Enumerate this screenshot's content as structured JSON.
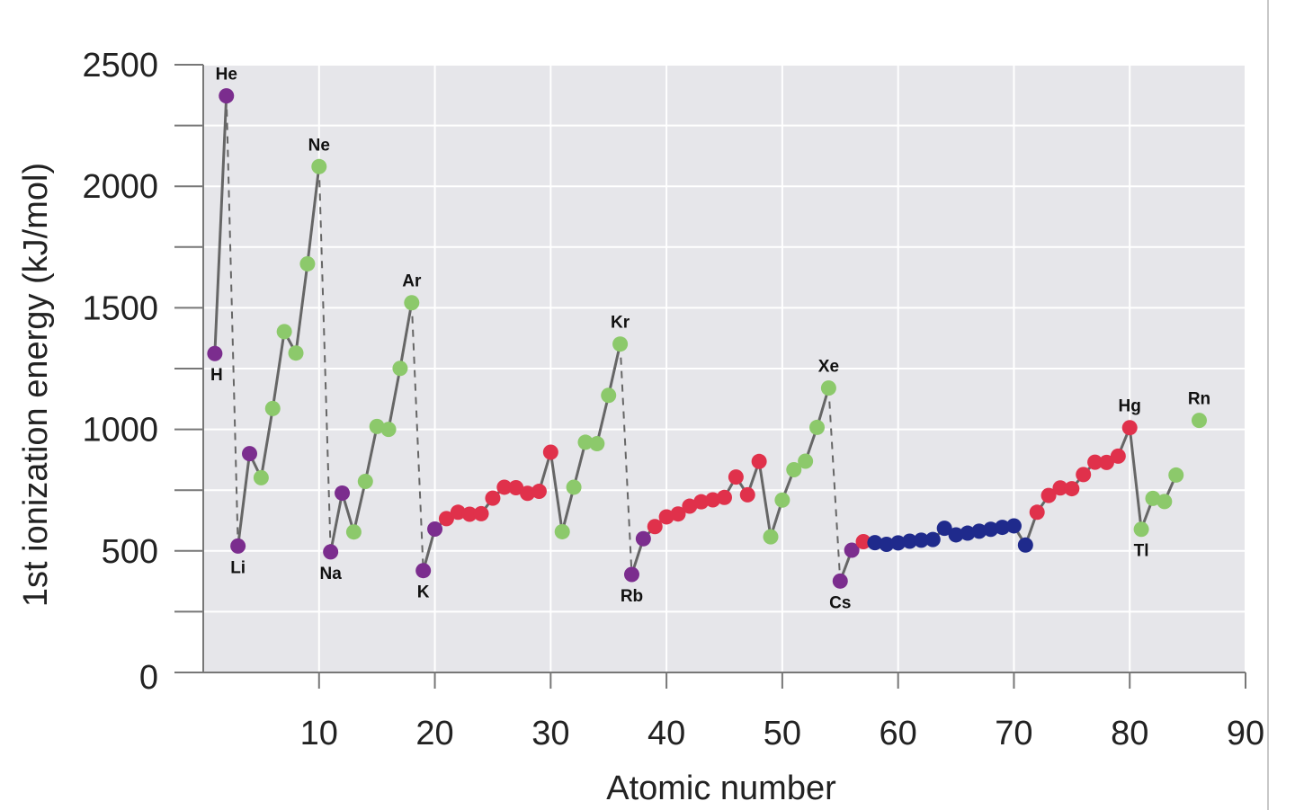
{
  "chart_data": {
    "type": "line",
    "title": "",
    "xlabel": "Atomic number",
    "ylabel": "1st ionization energy (kJ/mol)",
    "xlim": [
      0,
      90
    ],
    "ylim": [
      0,
      2500
    ],
    "x_ticks": [
      10,
      20,
      30,
      40,
      50,
      60,
      70,
      80,
      90
    ],
    "y_ticks": [
      0,
      500,
      1000,
      1500,
      2000,
      2500
    ],
    "grid": true,
    "colors": {
      "s_block": "#7b2d8e",
      "p_block": "#8cc96b",
      "d_block": "#e0314b",
      "f_block": "#1f2a8c",
      "plot_background": "#e6e6ea",
      "line": "#666666"
    },
    "series": [
      {
        "block": "s",
        "points": [
          [
            1,
            1312,
            "H"
          ],
          [
            2,
            2372,
            "He"
          ],
          [
            3,
            520,
            "Li"
          ],
          [
            4,
            900,
            ""
          ],
          [
            11,
            496,
            "Na"
          ],
          [
            12,
            738,
            ""
          ],
          [
            19,
            419,
            "K"
          ],
          [
            20,
            590,
            ""
          ],
          [
            37,
            403,
            "Rb"
          ],
          [
            38,
            550,
            ""
          ],
          [
            55,
            376,
            "Cs"
          ],
          [
            56,
            503,
            ""
          ]
        ]
      },
      {
        "block": "p",
        "points": [
          [
            5,
            801,
            ""
          ],
          [
            6,
            1086,
            ""
          ],
          [
            7,
            1402,
            ""
          ],
          [
            8,
            1314,
            ""
          ],
          [
            9,
            1681,
            ""
          ],
          [
            10,
            2081,
            "Ne"
          ],
          [
            13,
            578,
            ""
          ],
          [
            14,
            786,
            ""
          ],
          [
            15,
            1012,
            ""
          ],
          [
            16,
            1000,
            ""
          ],
          [
            17,
            1251,
            ""
          ],
          [
            18,
            1521,
            "Ar"
          ],
          [
            31,
            579,
            ""
          ],
          [
            32,
            762,
            ""
          ],
          [
            33,
            947,
            ""
          ],
          [
            34,
            941,
            ""
          ],
          [
            35,
            1140,
            ""
          ],
          [
            36,
            1351,
            "Kr"
          ],
          [
            49,
            558,
            ""
          ],
          [
            50,
            709,
            ""
          ],
          [
            51,
            834,
            ""
          ],
          [
            52,
            869,
            ""
          ],
          [
            53,
            1008,
            ""
          ],
          [
            54,
            1170,
            "Xe"
          ],
          [
            81,
            589,
            "Tl"
          ],
          [
            82,
            716,
            ""
          ],
          [
            83,
            703,
            ""
          ],
          [
            84,
            812,
            ""
          ],
          [
            86,
            1037,
            "Rn"
          ]
        ]
      },
      {
        "block": "d",
        "points": [
          [
            21,
            633,
            ""
          ],
          [
            22,
            659,
            ""
          ],
          [
            23,
            651,
            ""
          ],
          [
            24,
            653,
            ""
          ],
          [
            25,
            717,
            ""
          ],
          [
            26,
            762,
            ""
          ],
          [
            27,
            760,
            ""
          ],
          [
            28,
            737,
            ""
          ],
          [
            29,
            745,
            ""
          ],
          [
            30,
            906,
            ""
          ],
          [
            39,
            600,
            ""
          ],
          [
            40,
            640,
            ""
          ],
          [
            41,
            652,
            ""
          ],
          [
            42,
            684,
            ""
          ],
          [
            43,
            702,
            ""
          ],
          [
            44,
            710,
            ""
          ],
          [
            45,
            720,
            ""
          ],
          [
            46,
            804,
            ""
          ],
          [
            47,
            731,
            ""
          ],
          [
            48,
            868,
            ""
          ],
          [
            57,
            538,
            ""
          ],
          [
            72,
            659,
            ""
          ],
          [
            73,
            728,
            ""
          ],
          [
            74,
            759,
            ""
          ],
          [
            75,
            756,
            ""
          ],
          [
            76,
            814,
            ""
          ],
          [
            77,
            865,
            ""
          ],
          [
            78,
            864,
            ""
          ],
          [
            79,
            890,
            ""
          ],
          [
            80,
            1007,
            "Hg"
          ]
        ]
      },
      {
        "block": "f",
        "points": [
          [
            58,
            534,
            ""
          ],
          [
            59,
            527,
            ""
          ],
          [
            60,
            533,
            ""
          ],
          [
            61,
            540,
            ""
          ],
          [
            62,
            544,
            ""
          ],
          [
            63,
            547,
            ""
          ],
          [
            64,
            593,
            ""
          ],
          [
            65,
            566,
            ""
          ],
          [
            66,
            573,
            ""
          ],
          [
            67,
            581,
            ""
          ],
          [
            68,
            589,
            ""
          ],
          [
            69,
            597,
            ""
          ],
          [
            70,
            603,
            ""
          ],
          [
            71,
            524,
            ""
          ]
        ]
      }
    ],
    "dashed_drops": [
      [
        2,
        3
      ],
      [
        10,
        11
      ],
      [
        18,
        19
      ],
      [
        36,
        37
      ],
      [
        54,
        55
      ]
    ]
  }
}
